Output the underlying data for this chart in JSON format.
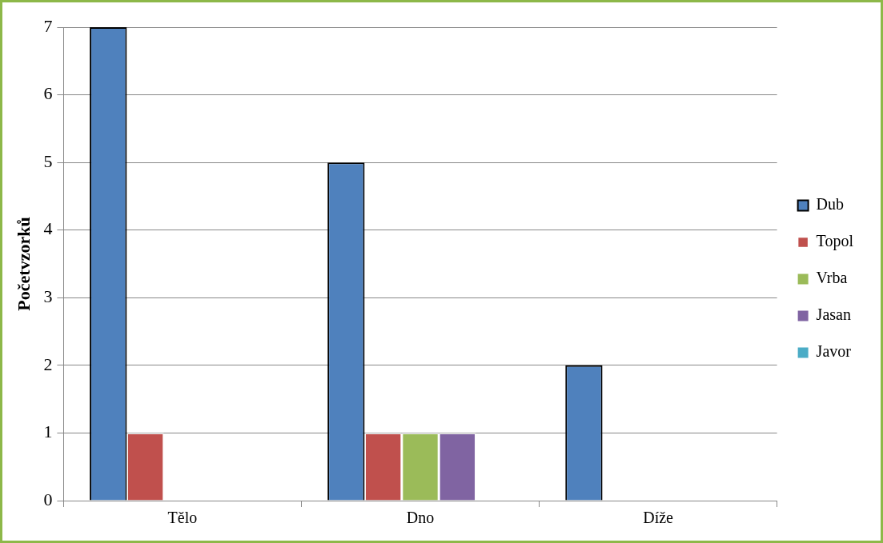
{
  "chart_data": {
    "type": "bar",
    "ylabel": "Početvzorků",
    "categories": [
      "Tělo",
      "Dno",
      "Díže"
    ],
    "series": [
      {
        "name": "Dub",
        "color": "#4f81bd",
        "values": [
          7,
          5,
          2
        ]
      },
      {
        "name": "Topol",
        "color": "#c0504d",
        "values": [
          1,
          1,
          0
        ]
      },
      {
        "name": "Vrba",
        "color": "#9bbb59",
        "values": [
          0,
          1,
          0
        ]
      },
      {
        "name": "Jasan",
        "color": "#8064a2",
        "values": [
          0,
          1,
          0
        ]
      },
      {
        "name": "Javor",
        "color": "#4bacc6",
        "values": [
          0,
          0,
          0
        ]
      }
    ],
    "ylim": [
      0,
      7
    ],
    "yticks": [
      0,
      1,
      2,
      3,
      4,
      5,
      6,
      7
    ],
    "grid": "y",
    "legend": "right"
  }
}
